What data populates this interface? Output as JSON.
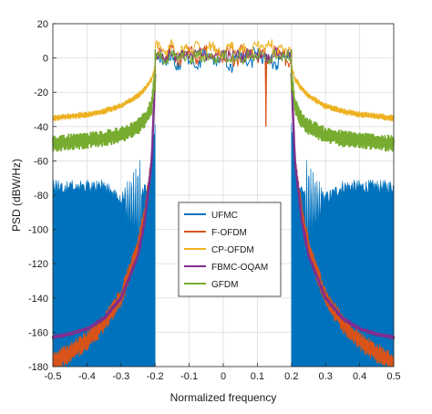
{
  "chart_data": {
    "type": "line",
    "title": "",
    "xlabel": "Normalized frequency",
    "ylabel": "PSD (dBW/Hz)",
    "xlim": [
      -0.5,
      0.5
    ],
    "ylim": [
      -180,
      20
    ],
    "xticks": [
      -0.5,
      -0.4,
      -0.3,
      -0.2,
      -0.1,
      0,
      0.1,
      0.2,
      0.3,
      0.4,
      0.5
    ],
    "yticks": [
      -180,
      -160,
      -140,
      -120,
      -100,
      -80,
      -60,
      -40,
      -20,
      0,
      20
    ],
    "grid": true,
    "legend_position": "center",
    "passband": [
      -0.2,
      0.2
    ],
    "series": [
      {
        "name": "UFMC",
        "color": "#0072BD",
        "inband_dB": [
          0,
          -3,
          1,
          -5,
          2,
          -1,
          -4,
          3,
          0,
          -2,
          1,
          -6,
          2,
          0,
          -3,
          4,
          -1,
          0,
          -5,
          2,
          1,
          -2
        ],
        "oob_floor_dB": -80,
        "edge_dB": -40,
        "band_fill_min_dB": -180,
        "stopband_points": {
          "f": [
            0.2,
            0.22,
            0.25,
            0.28,
            0.3,
            0.35,
            0.4,
            0.45,
            0.5
          ],
          "psd": [
            -40,
            -75,
            -80,
            -80,
            -82,
            -75,
            -75,
            -75,
            -75
          ]
        }
      },
      {
        "name": "F-OFDM",
        "color": "#D95319",
        "inband_dB": [
          3,
          0,
          5,
          -2,
          2,
          4,
          -1,
          6,
          1,
          3,
          0,
          4,
          -2,
          5,
          2,
          0,
          3,
          -1,
          4,
          2,
          -3,
          3
        ],
        "notch": {
          "f": 0.125,
          "psd": -40
        },
        "stopband_points": {
          "f": [
            0.2,
            0.21,
            0.23,
            0.25,
            0.3,
            0.35,
            0.4,
            0.45,
            0.5
          ],
          "psd": [
            -10,
            -60,
            -90,
            -110,
            -140,
            -155,
            -165,
            -172,
            -178
          ]
        }
      },
      {
        "name": "CP-OFDM",
        "color": "#EDB120",
        "inband_dB": [
          7,
          3,
          8,
          1,
          6,
          4,
          8,
          2,
          7,
          5,
          3,
          8,
          4,
          6,
          2,
          7,
          5,
          8,
          3,
          6,
          4,
          7
        ],
        "stopband_points": {
          "f": [
            0.2,
            0.21,
            0.23,
            0.25,
            0.3,
            0.35,
            0.4,
            0.45,
            0.5
          ],
          "psd": [
            -5,
            -12,
            -18,
            -22,
            -28,
            -31,
            -33,
            -34,
            -35
          ]
        }
      },
      {
        "name": "FBMC-OQAM",
        "color": "#7E2F8E",
        "inband_dB": [
          2,
          0,
          3,
          1,
          2,
          0,
          3,
          1,
          2,
          0,
          3,
          1,
          2,
          0,
          3,
          1,
          2,
          0,
          3,
          1,
          2,
          0
        ],
        "stopband_points": {
          "f": [
            0.2,
            0.21,
            0.23,
            0.25,
            0.3,
            0.35,
            0.4,
            0.45,
            0.5
          ],
          "psd": [
            -10,
            -60,
            -95,
            -115,
            -140,
            -152,
            -158,
            -161,
            -163
          ]
        }
      },
      {
        "name": "GFDM",
        "color": "#77AC30",
        "inband_dB": [
          1,
          -1,
          2,
          0,
          1,
          -1,
          2,
          0,
          1,
          -1,
          2,
          0,
          1,
          -1,
          2,
          0,
          1,
          -1,
          2,
          0,
          1,
          -1
        ],
        "stopband_points": {
          "f": [
            0.2,
            0.21,
            0.23,
            0.25,
            0.3,
            0.35,
            0.4,
            0.45,
            0.5
          ],
          "psd": [
            -10,
            -28,
            -36,
            -40,
            -45,
            -47,
            -48,
            -49,
            -50
          ]
        },
        "band_spread_dB": 10
      }
    ]
  }
}
